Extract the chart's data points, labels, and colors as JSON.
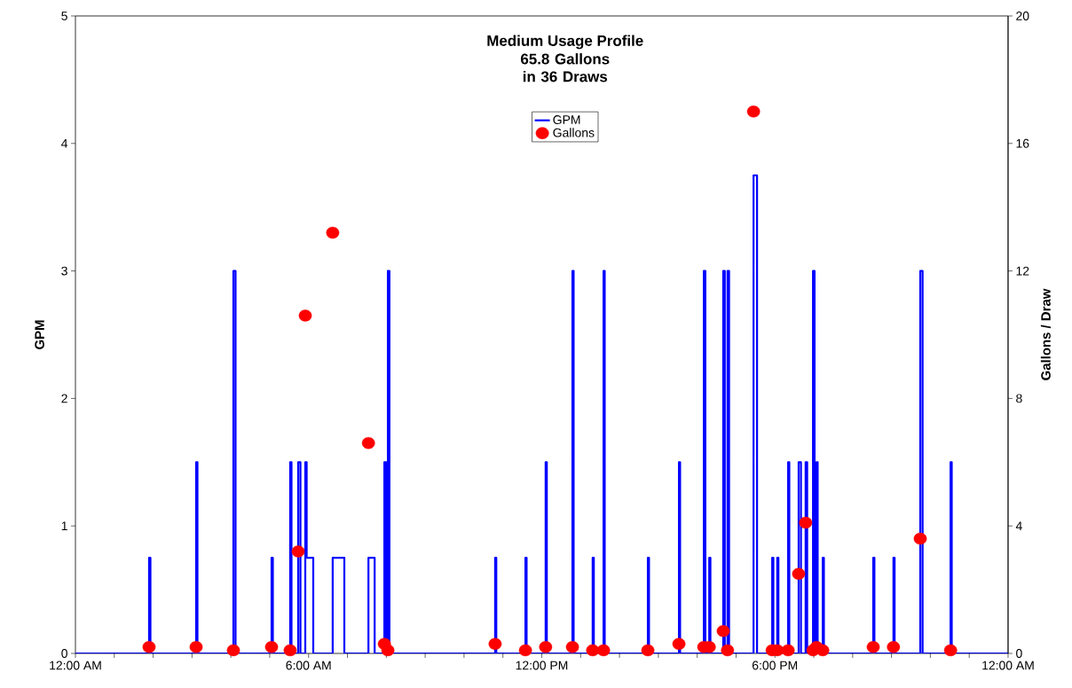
{
  "chart_data": {
    "type": "step",
    "title": "Medium Usage Profile",
    "subtitle": "65.8 Gallons in 36 Draws",
    "ylabel": "GPM",
    "y2label": "Gallons / Draw",
    "xlim": [
      0,
      24
    ],
    "xticks": [
      {
        "value": 0,
        "label": "12:00 AM"
      },
      {
        "value": 1,
        "label": null
      },
      {
        "value": 2,
        "label": null
      },
      {
        "value": 3,
        "label": null
      },
      {
        "value": 4,
        "label": null
      },
      {
        "value": 5,
        "label": null
      },
      {
        "value": 6,
        "label": "6:00 AM"
      },
      {
        "value": 7,
        "label": null
      },
      {
        "value": 8,
        "label": null
      },
      {
        "value": 9,
        "label": null
      },
      {
        "value": 10,
        "label": null
      },
      {
        "value": 11,
        "label": null
      },
      {
        "value": 12,
        "label": "12:00 PM"
      },
      {
        "value": 13,
        "label": null
      },
      {
        "value": 14,
        "label": null
      },
      {
        "value": 15,
        "label": null
      },
      {
        "value": 16,
        "label": null
      },
      {
        "value": 17,
        "label": null
      },
      {
        "value": 18,
        "label": "6:00 PM"
      },
      {
        "value": 19,
        "label": null
      },
      {
        "value": 20,
        "label": null
      },
      {
        "value": 21,
        "label": null
      },
      {
        "value": 22,
        "label": null
      },
      {
        "value": 23,
        "label": null
      },
      {
        "value": 24,
        "label": "12:00 AM"
      }
    ],
    "ylim": [
      0,
      5
    ],
    "yticks": [
      0,
      1,
      2,
      3,
      4,
      5
    ],
    "y2lim": [
      0,
      20
    ],
    "y2ticks": [
      0,
      4,
      8,
      12,
      16,
      20
    ],
    "legend": "top",
    "grid": false,
    "series": [
      {
        "name": "GPM",
        "color": "#0000ff",
        "marker": "none",
        "x": [
          0,
          1.895,
          1.93,
          3.106,
          3.14,
          4.065,
          4.12,
          5.047,
          5.08,
          5.526,
          5.56,
          5.732,
          5.79,
          5.915,
          5.95,
          6.12,
          6.62,
          6.92,
          7.54,
          7.7,
          7.95,
          8.0,
          8.04,
          8.08,
          10.8,
          10.83,
          11.58,
          11.61,
          12.1,
          12.13,
          12.79,
          12.82,
          13.31,
          13.34,
          13.59,
          13.62,
          14.73,
          14.76,
          15.53,
          15.56,
          16.17,
          16.21,
          16.31,
          16.34,
          16.67,
          16.71,
          16.78,
          16.82,
          17.45,
          17.54,
          17.93,
          17.96,
          18.06,
          18.09,
          18.34,
          18.37,
          18.61,
          18.67,
          18.79,
          18.83,
          18.98,
          19.02,
          19.07,
          19.1,
          19.23,
          19.26,
          20.53,
          20.56,
          21.05,
          21.08,
          21.74,
          21.8,
          22.52,
          22.55,
          24
        ],
        "values": [
          0,
          0.75,
          0,
          1.5,
          0,
          3,
          0,
          0.75,
          0,
          1.5,
          0,
          1.5,
          0,
          1.5,
          0.75,
          0,
          0.75,
          0,
          0.75,
          0,
          1.5,
          0,
          3,
          0,
          0.75,
          0,
          0.75,
          0,
          1.5,
          0,
          3,
          0,
          0.75,
          0,
          3,
          0,
          0.75,
          0,
          1.5,
          0,
          3,
          0,
          0.75,
          0,
          3,
          0,
          3,
          0,
          3.75,
          0,
          0.75,
          0,
          0.75,
          0,
          1.5,
          0,
          1.5,
          0,
          1.5,
          0,
          3,
          0,
          1.5,
          0,
          0.75,
          0,
          0.75,
          0,
          0.75,
          0,
          3,
          0,
          1.5,
          0,
          0
        ]
      },
      {
        "name": "Gallons",
        "type": "scatter",
        "axis": "y2",
        "color": "#ff0000",
        "marker": "circle",
        "x": [
          1.895,
          3.106,
          4.065,
          5.047,
          5.526,
          5.732,
          5.915,
          6.62,
          7.54,
          7.95,
          8.04,
          10.8,
          11.58,
          12.1,
          12.79,
          13.31,
          13.59,
          14.73,
          15.53,
          16.17,
          16.31,
          16.67,
          16.78,
          17.45,
          17.93,
          18.06,
          18.34,
          18.61,
          18.79,
          18.98,
          19.07,
          19.23,
          20.53,
          21.05,
          21.74,
          22.52
        ],
        "values": [
          0.2,
          0.2,
          0.1,
          0.2,
          0.1,
          3.2,
          10.6,
          13.2,
          6.6,
          0.3,
          0.1,
          0.3,
          0.1,
          0.2,
          0.2,
          0.1,
          0.1,
          0.1,
          0.3,
          0.2,
          0.2,
          0.7,
          0.1,
          17.0,
          0.1,
          0.1,
          0.1,
          2.5,
          4.1,
          0.1,
          0.2,
          0.1,
          0.2,
          0.2,
          3.6,
          0.1
        ]
      }
    ]
  }
}
